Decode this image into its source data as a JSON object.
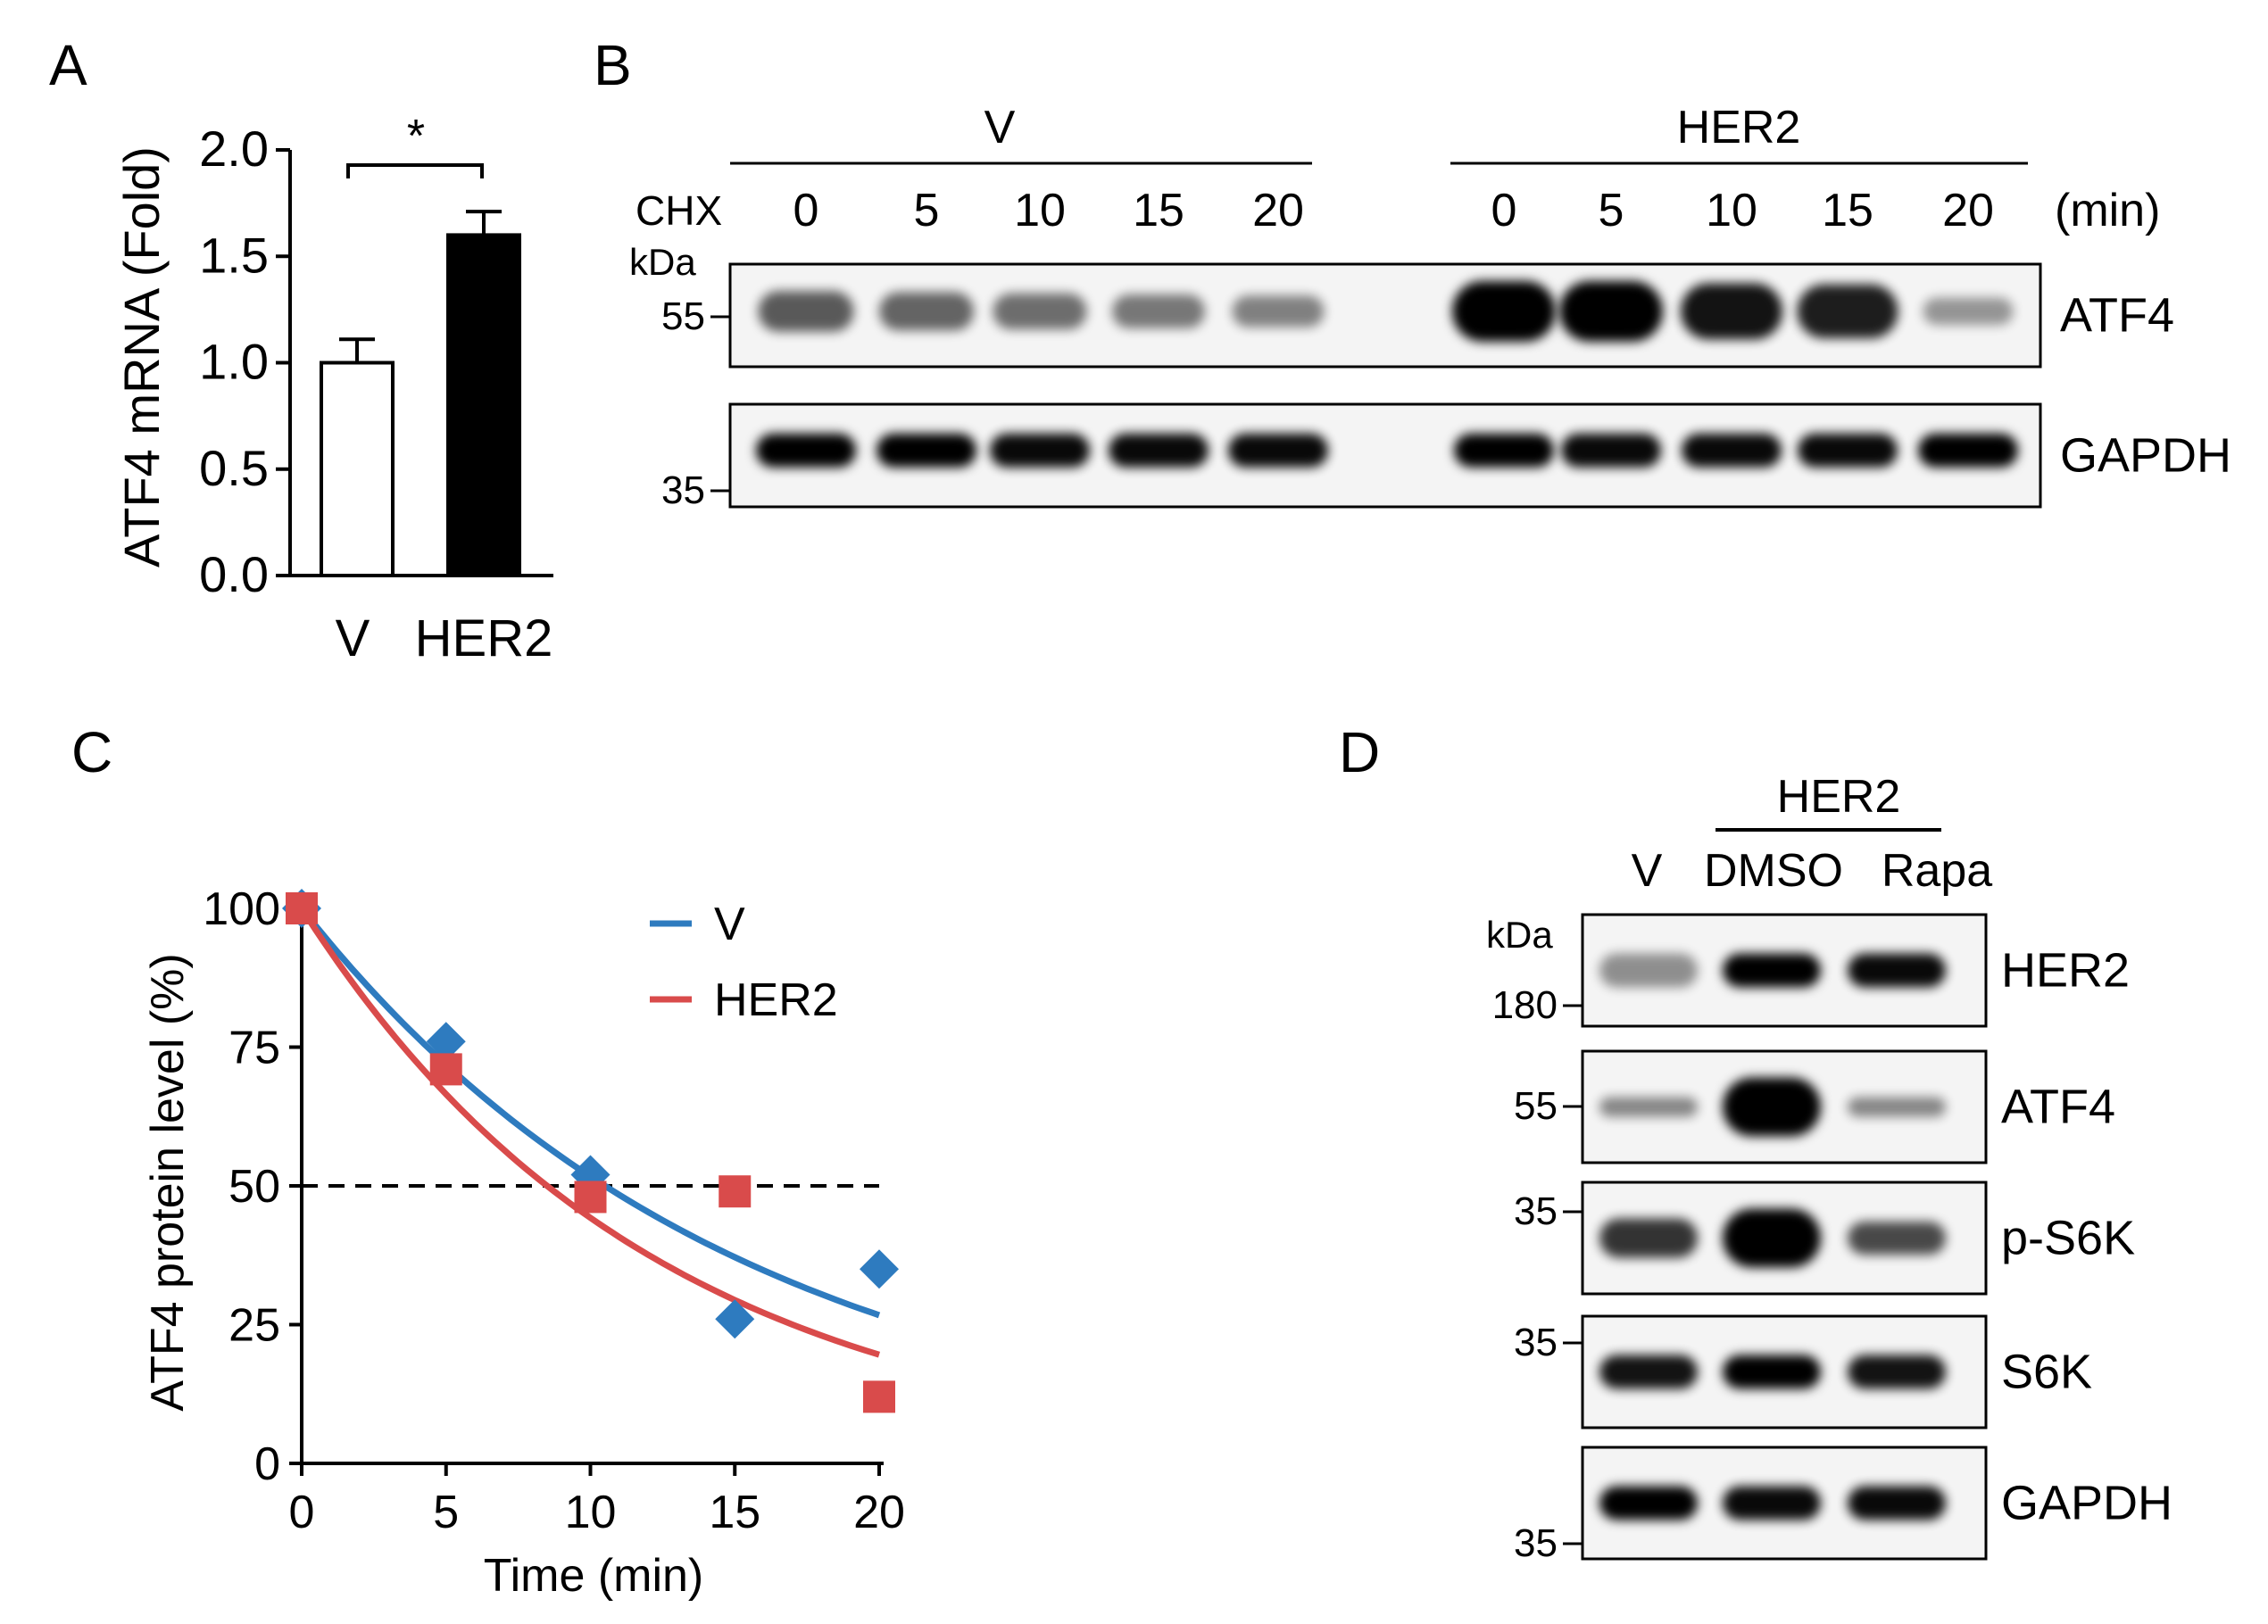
{
  "panels": {
    "A": {
      "label": "A",
      "ylabel": "ATF4 mRNA (Fold)",
      "significance": "*",
      "chart_data": {
        "type": "bar",
        "categories": [
          "V",
          "HER2"
        ],
        "values": [
          1.0,
          1.6
        ],
        "errors": [
          0.11,
          0.11
        ],
        "bar_colors": [
          "#ffffff",
          "#000000"
        ],
        "ylabel": "ATF4 mRNA (Fold)",
        "ylim": [
          0,
          2.0
        ],
        "yticks": [
          "0.0",
          "0.5",
          "1.0",
          "1.5",
          "2.0"
        ],
        "annotation": "*"
      }
    },
    "B": {
      "label": "B",
      "treatment_label": "CHX",
      "time_unit": "(min)",
      "kda_label": "kDa",
      "groups": [
        {
          "name": "V",
          "lanes": [
            "0",
            "5",
            "10",
            "15",
            "20"
          ]
        },
        {
          "name": "HER2",
          "lanes": [
            "0",
            "5",
            "10",
            "15",
            "20"
          ]
        }
      ],
      "blots": [
        {
          "protein": "ATF4",
          "marker": "55",
          "v_intensity": [
            0.55,
            0.5,
            0.45,
            0.4,
            0.35
          ],
          "her2_intensity": [
            1.0,
            1.0,
            0.9,
            0.85,
            0.25
          ]
        },
        {
          "protein": "GAPDH",
          "marker": "35",
          "v_intensity": [
            1.0,
            1.0,
            0.95,
            0.95,
            0.95
          ],
          "her2_intensity": [
            1.0,
            0.95,
            0.95,
            0.95,
            1.0
          ]
        }
      ]
    },
    "C": {
      "label": "C",
      "chart_data": {
        "type": "scatter",
        "xlabel": "Time (min)",
        "ylabel": "ATF4 protein level (%)",
        "xlim": [
          0,
          20
        ],
        "ylim": [
          0,
          100
        ],
        "xticks": [
          "0",
          "5",
          "10",
          "15",
          "20"
        ],
        "yticks": [
          "0",
          "25",
          "50",
          "75",
          "100"
        ],
        "reference_line": 50,
        "legend_position": "top-right",
        "series": [
          {
            "name": "V",
            "color": "#2e7bbf",
            "marker": "diamond",
            "x": [
              0,
              5,
              10,
              15,
              20
            ],
            "y": [
              100,
              76,
              52,
              26,
              35
            ],
            "fit_half_life": 10.5
          },
          {
            "name": "HER2",
            "color": "#d94b4b",
            "marker": "square",
            "x": [
              0,
              5,
              10,
              15,
              20
            ],
            "y": [
              100,
              71,
              48,
              49,
              12
            ],
            "fit_half_life": 8.5
          }
        ]
      }
    },
    "D": {
      "label": "D",
      "group_label": "HER2",
      "lanes": [
        "V",
        "DMSO",
        "Rapa"
      ],
      "kda_label": "kDa",
      "blots": [
        {
          "protein": "HER2",
          "marker": "180",
          "intensity": [
            0.3,
            1.0,
            0.95
          ]
        },
        {
          "protein": "ATF4",
          "marker": "55",
          "intensity": [
            0.35,
            1.0,
            0.35
          ]
        },
        {
          "protein": "p-S6K",
          "marker": "35",
          "intensity": [
            0.75,
            1.0,
            0.65
          ]
        },
        {
          "protein": "S6K",
          "marker": "35",
          "intensity": [
            0.9,
            1.0,
            0.9
          ]
        },
        {
          "protein": "GAPDH",
          "marker": "35",
          "intensity": [
            1.0,
            0.95,
            0.95
          ]
        }
      ]
    }
  }
}
